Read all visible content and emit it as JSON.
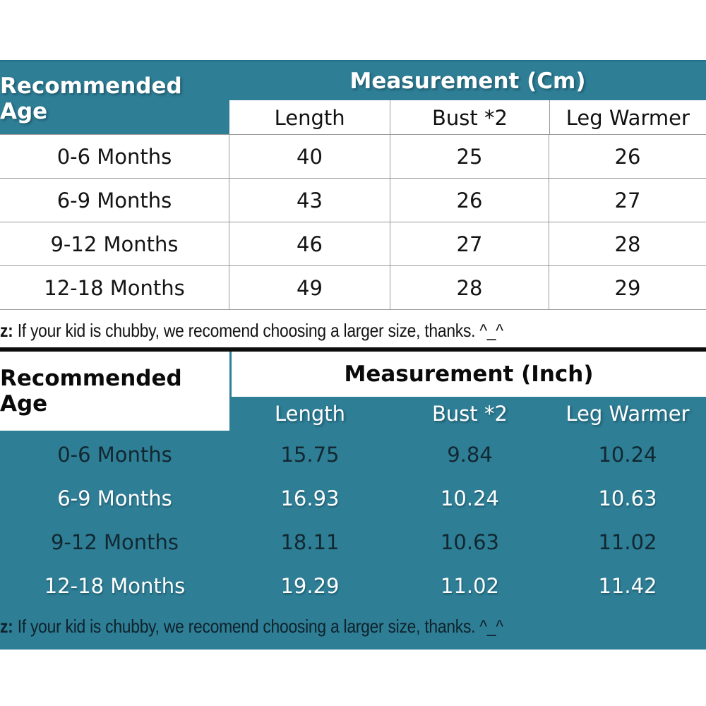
{
  "colors": {
    "teal_background": "#2e7e96",
    "dark_text_on_teal": "#122831",
    "grid_line": "#9a9a9a",
    "divider_line": "#0d0d0d"
  },
  "note": {
    "prefix": "z:",
    "text": "If your kid is chubby, we recomend choosing a larger size, thanks. ^_^"
  },
  "cm_table": {
    "corner": "Recommended Age",
    "header": "Measurement (Cm)",
    "columns": [
      "Length",
      "Bust *2",
      "Leg Warmer"
    ],
    "rows": [
      {
        "age": "0-6 Months",
        "length": "40",
        "bust": "25",
        "leg": "26"
      },
      {
        "age": "6-9 Months",
        "length": "43",
        "bust": "26",
        "leg": "27"
      },
      {
        "age": "9-12 Months",
        "length": "46",
        "bust": "27",
        "leg": "28"
      },
      {
        "age": "12-18 Months",
        "length": "49",
        "bust": "28",
        "leg": "29"
      }
    ]
  },
  "inch_table": {
    "corner": "Recommended Age",
    "header": "Measurement (Inch)",
    "columns": [
      "Length",
      "Bust *2",
      "Leg Warmer"
    ],
    "rows": [
      {
        "age": "0-6 Months",
        "length": "15.75",
        "bust": "9.84",
        "leg": "10.24"
      },
      {
        "age": "6-9 Months",
        "length": "16.93",
        "bust": "10.24",
        "leg": "10.63"
      },
      {
        "age": "9-12 Months",
        "length": "18.11",
        "bust": "10.63",
        "leg": "11.02"
      },
      {
        "age": "12-18 Months",
        "length": "19.29",
        "bust": "11.02",
        "leg": "11.42"
      }
    ]
  }
}
